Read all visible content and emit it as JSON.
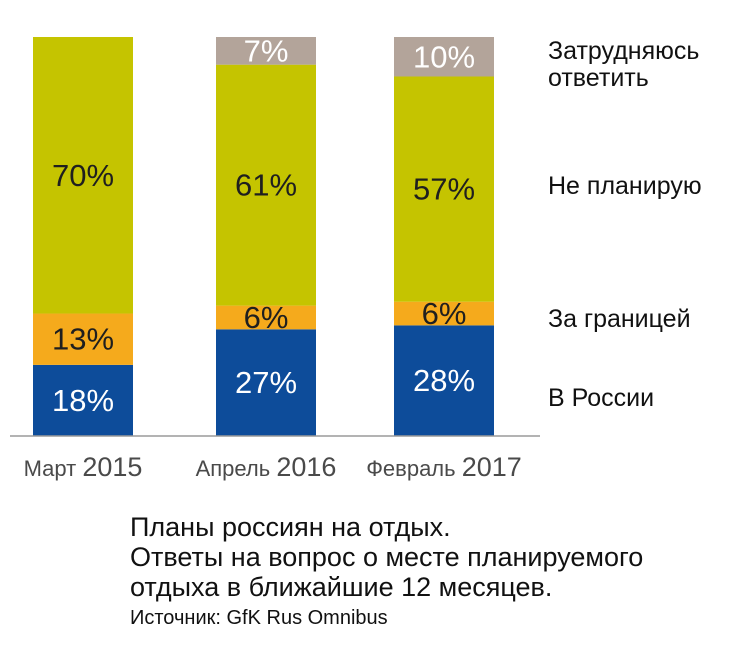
{
  "chart_data": {
    "type": "bar",
    "stacked": true,
    "normalized": true,
    "categories": [
      {
        "label": "Март",
        "year": "2015"
      },
      {
        "label": "Апрель",
        "year": "2016"
      },
      {
        "label": "Февраль",
        "year": "2017"
      }
    ],
    "series": [
      {
        "name": "В России",
        "values": [
          18,
          27,
          28
        ],
        "color": "#0d4c9a",
        "label_color": "light"
      },
      {
        "name": "За границей",
        "values": [
          13,
          6,
          6
        ],
        "color": "#f5aa1c",
        "label_color": "dark"
      },
      {
        "name": "Не планирую",
        "values": [
          70,
          61,
          57
        ],
        "color": "#c5c400",
        "label_color": "dark"
      },
      {
        "name": "Затрудняюсь ответить",
        "legend_lines": [
          "Затрудняюсь",
          "ответить"
        ],
        "values": [
          null,
          7,
          10
        ],
        "color": "#b3a49a",
        "label_color": "light"
      }
    ],
    "value_suffix": "%",
    "ylim": [
      0,
      100
    ],
    "legend_placement": "right",
    "grid": false
  },
  "caption": {
    "title_lines": [
      "Планы россиян на отдых.",
      "Ответы на вопрос о месте планируемого",
      "отдыха в ближайшие 12 месяцев."
    ],
    "source": "Источник: GfK Rus Omnibus"
  }
}
